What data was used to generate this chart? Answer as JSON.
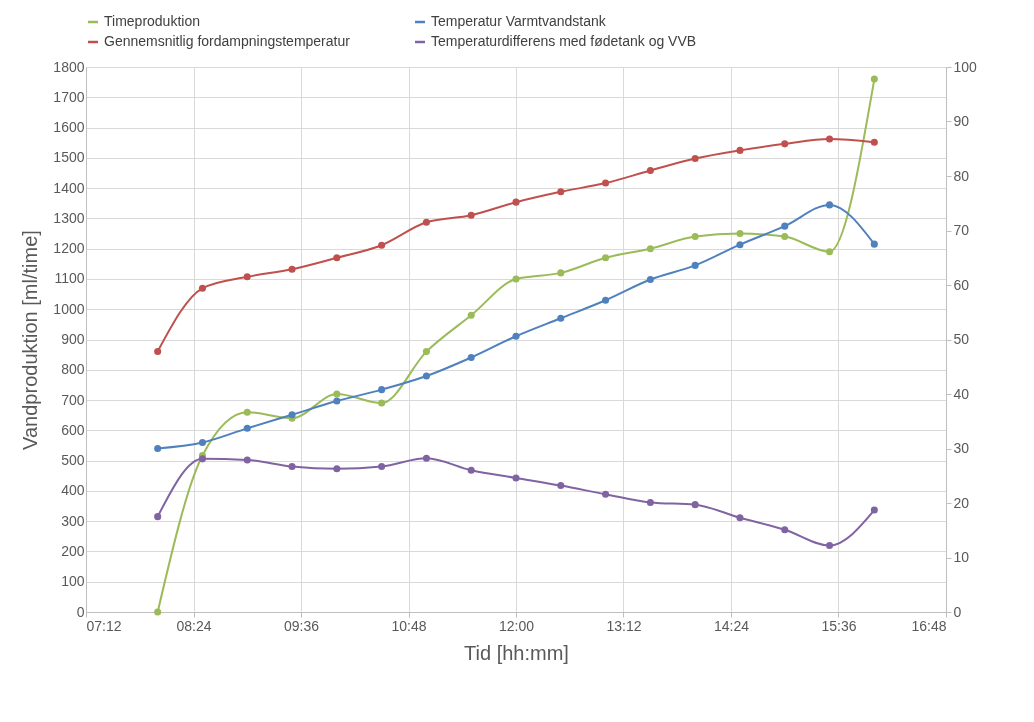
{
  "chart_data": {
    "type": "line",
    "xlabel": "Tid [hh:mm]",
    "ylabel": "Vandproduktion [ml/time]",
    "x": [
      8,
      8.5,
      9,
      9.5,
      10,
      10.5,
      11,
      11.5,
      12,
      12.5,
      13,
      13.5,
      14,
      14.5,
      15,
      15.5,
      16
    ],
    "xlim": [
      7.2,
      16.8
    ],
    "xticks": [
      {
        "value": 7.2,
        "label": "07:12"
      },
      {
        "value": 8.4,
        "label": "08:24"
      },
      {
        "value": 9.6,
        "label": "09:36"
      },
      {
        "value": 10.8,
        "label": "10:48"
      },
      {
        "value": 12,
        "label": "12:00"
      },
      {
        "value": 13.2,
        "label": "13:12"
      },
      {
        "value": 14.4,
        "label": "14:24"
      },
      {
        "value": 15.6,
        "label": "15:36"
      },
      {
        "value": 16.8,
        "label": "16:48"
      }
    ],
    "ylim": [
      0,
      1800
    ],
    "yticks": [
      0,
      100,
      200,
      300,
      400,
      500,
      600,
      700,
      800,
      900,
      1000,
      1100,
      1200,
      1300,
      1400,
      1500,
      1600,
      1700,
      1800
    ],
    "y2lim": [
      0,
      100
    ],
    "y2ticks": [
      0,
      10,
      20,
      30,
      40,
      50,
      60,
      70,
      80,
      90,
      100
    ],
    "series": [
      {
        "name": "Timeproduktion",
        "color": "#9bbb59",
        "values": [
          0,
          517,
          660,
          640,
          720,
          690,
          860,
          980,
          1100,
          1120,
          1170,
          1200,
          1240,
          1250,
          1240,
          1190,
          1760
        ]
      },
      {
        "name": "Temperatur Varmtvandstank",
        "color": "#4f81bd",
        "axis": "y2",
        "values": [
          30,
          31.1,
          33.7,
          36.2,
          38.7,
          40.8,
          43.3,
          46.7,
          50.6,
          53.9,
          57.2,
          61,
          63.6,
          67.4,
          70.8,
          74.7,
          67.5
        ]
      },
      {
        "name": "Gennemsnitlig fordampningstemperatur",
        "color": "#c0504d",
        "axis": "y2",
        "values": [
          47.8,
          59.4,
          61.5,
          62.9,
          65,
          67.3,
          71.5,
          72.8,
          75.2,
          77.1,
          78.7,
          81,
          83.2,
          84.7,
          85.9,
          86.8,
          86.2
        ]
      },
      {
        "name": "Temperaturdifferens med fødetank og VVB",
        "color": "#8064a2",
        "axis": "y2",
        "values": [
          17.5,
          28.1,
          27.9,
          26.7,
          26.3,
          26.7,
          28.2,
          26,
          24.6,
          23.2,
          21.6,
          20.1,
          19.7,
          17.3,
          15.1,
          12.2,
          18.7
        ]
      }
    ],
    "grid": true,
    "legend": "top",
    "marker": "circle",
    "line_style": "solid"
  }
}
